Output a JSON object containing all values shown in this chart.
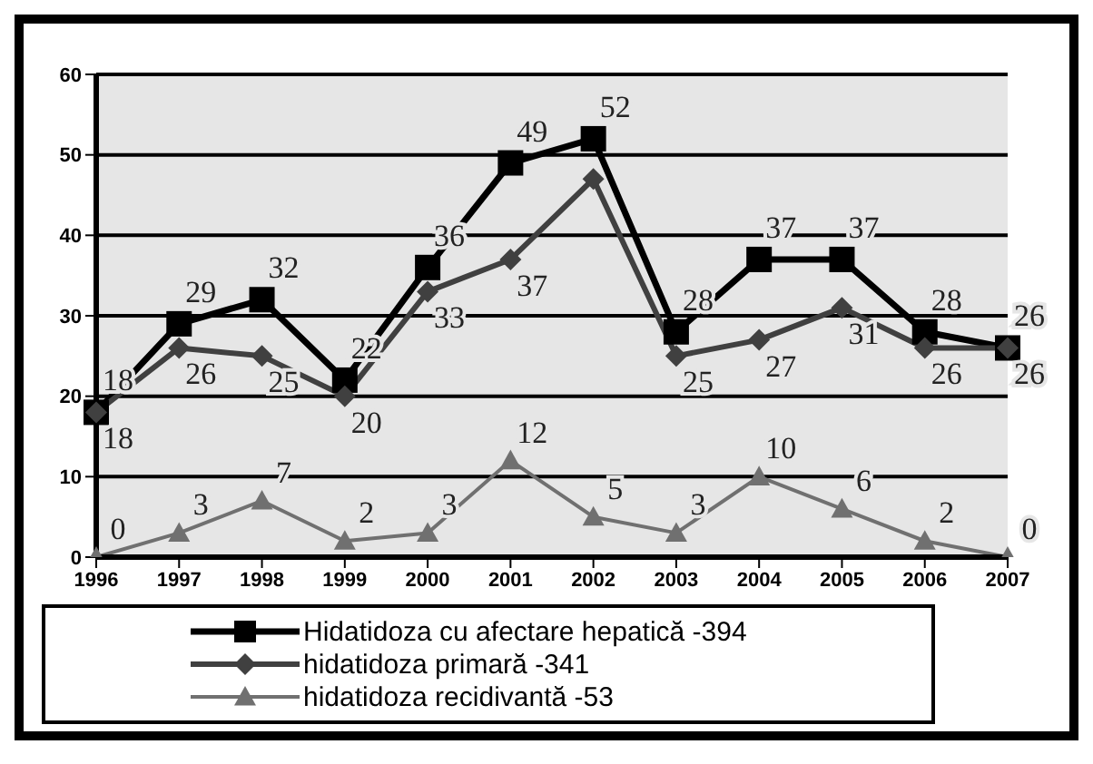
{
  "chart_data": {
    "type": "line",
    "categories": [
      "1996",
      "1997",
      "1998",
      "1999",
      "2000",
      "2001",
      "2002",
      "2003",
      "2004",
      "2005",
      "2006",
      "2007"
    ],
    "series": [
      {
        "name": "Hidatidoza cu afectare hepatică -394",
        "color": "#000000",
        "marker": "square",
        "values": [
          18,
          29,
          32,
          22,
          36,
          49,
          52,
          28,
          37,
          37,
          28,
          26
        ],
        "value_labels": [
          "18",
          "29",
          "32",
          "22",
          "36",
          "49",
          "52",
          "28",
          "37",
          "37",
          "28",
          "26"
        ]
      },
      {
        "name": "hidatidoza primară -341",
        "color": "#404040",
        "marker": "diamond",
        "values": [
          18,
          26,
          25,
          20,
          33,
          37,
          47,
          25,
          27,
          31,
          26,
          26
        ],
        "value_labels": [
          "18",
          "26",
          "25",
          "20",
          "33",
          "37",
          null,
          "25",
          "27",
          "31",
          "26",
          "26"
        ]
      },
      {
        "name": "hidatidoza recidivantă -53",
        "color": "#707070",
        "marker": "triangle",
        "values": [
          0,
          3,
          7,
          2,
          3,
          12,
          5,
          3,
          10,
          6,
          2,
          0
        ],
        "value_labels": [
          "0",
          "3",
          "7",
          "2",
          "3",
          "12",
          "5",
          "3",
          "10",
          "6",
          "2",
          "0"
        ]
      }
    ],
    "ylim": [
      0,
      60
    ],
    "yticks": [
      0,
      10,
      20,
      30,
      40,
      50,
      60
    ],
    "grid": "y",
    "legend": "bottom",
    "line_style": "solid"
  }
}
